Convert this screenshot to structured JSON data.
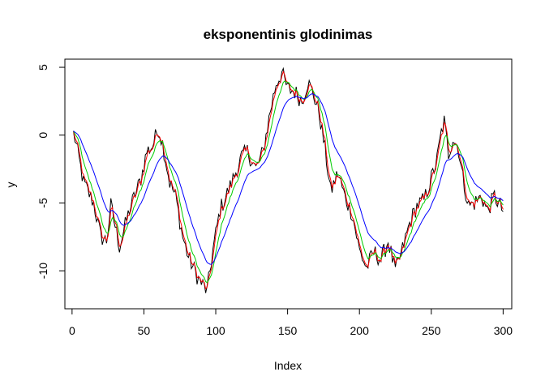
{
  "chart_data": {
    "type": "line",
    "title": "eksponentinis glodinimas",
    "xlabel": "Index",
    "ylabel": "y",
    "xlim": [
      -5,
      306
    ],
    "ylim": [
      -12.8,
      5.6
    ],
    "xticks": [
      0,
      50,
      100,
      150,
      200,
      250,
      300
    ],
    "xtick_labels": [
      "0",
      "50",
      "100",
      "150",
      "200",
      "250",
      "300"
    ],
    "yticks": [
      5,
      0,
      -5,
      -10
    ],
    "ytick_labels": [
      "5",
      "0",
      "-5",
      "-10"
    ],
    "grid": false,
    "legend": "none",
    "x_start": 1,
    "x_end": 300,
    "anchors": [
      [
        1,
        0.3
      ],
      [
        8,
        -3.5
      ],
      [
        15,
        -5.0
      ],
      [
        20,
        -7.5
      ],
      [
        24,
        -7.8
      ],
      [
        27,
        -5.2
      ],
      [
        33,
        -8.2
      ],
      [
        40,
        -5.5
      ],
      [
        48,
        -3.2
      ],
      [
        52,
        -1.2
      ],
      [
        56,
        -0.8
      ],
      [
        60,
        0.5
      ],
      [
        63,
        -0.6
      ],
      [
        68,
        -3.5
      ],
      [
        72,
        -4.5
      ],
      [
        77,
        -7.5
      ],
      [
        81,
        -9.0
      ],
      [
        88,
        -10.6
      ],
      [
        94,
        -11.5
      ],
      [
        98,
        -8.5
      ],
      [
        103,
        -5.5
      ],
      [
        110,
        -3.8
      ],
      [
        118,
        -1.6
      ],
      [
        122,
        -1.2
      ],
      [
        128,
        -2.5
      ],
      [
        133,
        -1.2
      ],
      [
        138,
        1.8
      ],
      [
        142,
        3.8
      ],
      [
        146,
        4.6
      ],
      [
        150,
        3.4
      ],
      [
        155,
        3.2
      ],
      [
        160,
        2.5
      ],
      [
        164,
        3.9
      ],
      [
        168,
        3.0
      ],
      [
        172,
        1.6
      ],
      [
        176,
        -1.0
      ],
      [
        180,
        -4.2
      ],
      [
        185,
        -2.8
      ],
      [
        190,
        -4.6
      ],
      [
        195,
        -5.8
      ],
      [
        200,
        -8.5
      ],
      [
        205,
        -9.8
      ],
      [
        210,
        -8.6
      ],
      [
        215,
        -9.2
      ],
      [
        220,
        -7.8
      ],
      [
        225,
        -10.0
      ],
      [
        229,
        -8.8
      ],
      [
        235,
        -6.5
      ],
      [
        240,
        -5.2
      ],
      [
        245,
        -4.8
      ],
      [
        250,
        -3.2
      ],
      [
        254,
        -1.8
      ],
      [
        257,
        0.2
      ],
      [
        259,
        1.0
      ],
      [
        262,
        -1.4
      ],
      [
        265,
        -0.2
      ],
      [
        269,
        -1.0
      ],
      [
        272,
        -3.2
      ],
      [
        276,
        -5.2
      ],
      [
        280,
        -5.0
      ],
      [
        285,
        -4.5
      ],
      [
        289,
        -5.6
      ],
      [
        294,
        -4.5
      ],
      [
        300,
        -5.6
      ]
    ],
    "series": [
      {
        "alpha": 1.0,
        "color": "#000000"
      },
      {
        "alpha": 0.6,
        "color": "#ff0000"
      },
      {
        "alpha": 0.25,
        "color": "#00cd00"
      },
      {
        "alpha": 0.1,
        "color": "#0000ff"
      }
    ]
  }
}
